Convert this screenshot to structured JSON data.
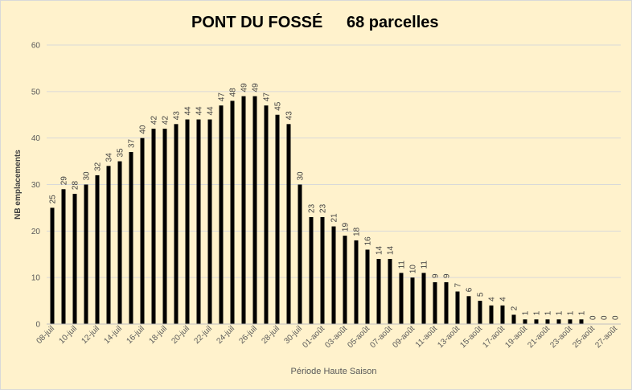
{
  "chart_data": {
    "type": "bar",
    "title": "PONT DU FOSSÉ",
    "subtitle": "68 parcelles",
    "xlabel": "Période Haute Saison",
    "ylabel": "NB emplacements",
    "ylim": [
      0,
      60
    ],
    "yticks": [
      0,
      10,
      20,
      30,
      40,
      50,
      60
    ],
    "grid": true,
    "bar_color": "#000000",
    "background": "#fff2cc",
    "categories": [
      "08-juil",
      "09-juil",
      "10-juil",
      "11-juil",
      "12-juil",
      "13-juil",
      "14-juil",
      "15-juil",
      "16-juil",
      "17-juil",
      "18-juil",
      "19-juil",
      "20-juil",
      "21-juil",
      "22-juil",
      "23-juil",
      "24-juil",
      "25-juil",
      "26-juil",
      "27-juil",
      "28-juil",
      "29-juil",
      "30-juil",
      "31-juil",
      "01-août",
      "02-août",
      "03-août",
      "04-août",
      "05-août",
      "06-août",
      "07-août",
      "08-août",
      "09-août",
      "10-août",
      "11-août",
      "12-août",
      "13-août",
      "14-août",
      "15-août",
      "16-août",
      "17-août",
      "18-août",
      "19-août",
      "20-août",
      "21-août",
      "22-août",
      "23-août",
      "24-août",
      "25-août",
      "26-août",
      "27-août"
    ],
    "tick_labels": [
      "08-juil",
      "",
      "10-juil",
      "",
      "12-juil",
      "",
      "14-juil",
      "",
      "16-juil",
      "",
      "18-juil",
      "",
      "20-juil",
      "",
      "22-juil",
      "",
      "24-juil",
      "",
      "26-juil",
      "",
      "28-juil",
      "",
      "30-juil",
      "",
      "01-août",
      "",
      "03-août",
      "",
      "05-août",
      "",
      "07-août",
      "",
      "09-août",
      "",
      "11-août",
      "",
      "13-août",
      "",
      "15-août",
      "",
      "17-août",
      "",
      "19-août",
      "",
      "21-août",
      "",
      "23-août",
      "",
      "25-août",
      "",
      "27-août"
    ],
    "values": [
      25,
      29,
      28,
      30,
      32,
      34,
      35,
      37,
      40,
      42,
      42,
      43,
      44,
      44,
      44,
      47,
      48,
      49,
      49,
      47,
      45,
      43,
      30,
      23,
      23,
      21,
      19,
      18,
      16,
      14,
      14,
      11,
      10,
      11,
      9,
      9,
      7,
      6,
      5,
      4,
      4,
      2,
      1,
      1,
      1,
      1,
      1,
      1,
      0,
      0,
      0
    ]
  }
}
